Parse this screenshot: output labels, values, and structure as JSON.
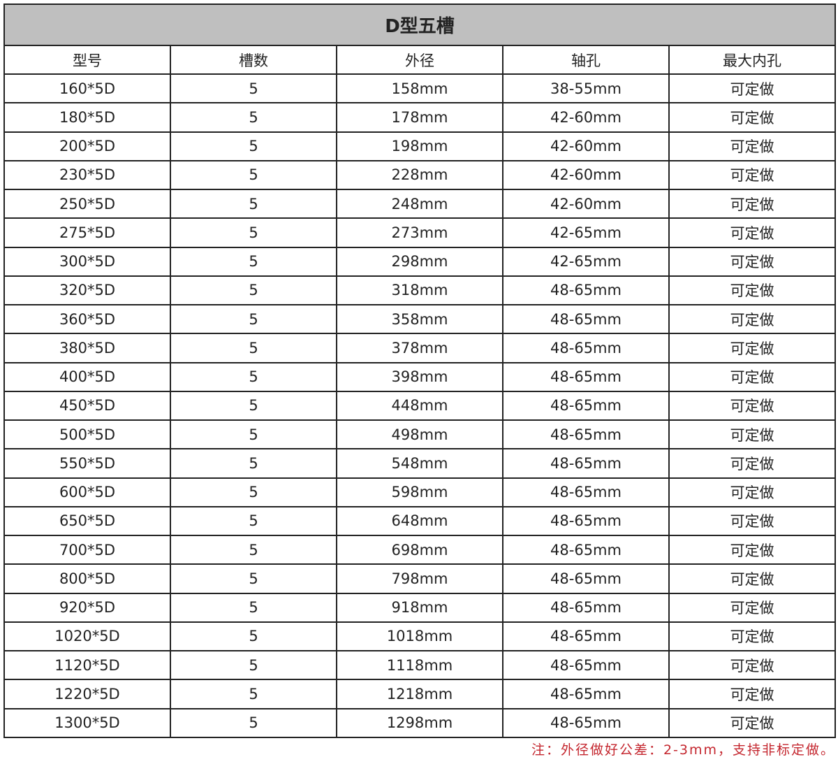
{
  "title": "D型五槽",
  "columns": [
    "型号",
    "槽数",
    "外径",
    "轴孔",
    "最大内孔"
  ],
  "rows": [
    [
      "160*5D",
      "5",
      "158mm",
      "38-55mm",
      "可定做"
    ],
    [
      "180*5D",
      "5",
      "178mm",
      "42-60mm",
      "可定做"
    ],
    [
      "200*5D",
      "5",
      "198mm",
      "42-60mm",
      "可定做"
    ],
    [
      "230*5D",
      "5",
      "228mm",
      "42-60mm",
      "可定做"
    ],
    [
      "250*5D",
      "5",
      "248mm",
      "42-60mm",
      "可定做"
    ],
    [
      "275*5D",
      "5",
      "273mm",
      "42-65mm",
      "可定做"
    ],
    [
      "300*5D",
      "5",
      "298mm",
      "42-65mm",
      "可定做"
    ],
    [
      "320*5D",
      "5",
      "318mm",
      "48-65mm",
      "可定做"
    ],
    [
      "360*5D",
      "5",
      "358mm",
      "48-65mm",
      "可定做"
    ],
    [
      "380*5D",
      "5",
      "378mm",
      "48-65mm",
      "可定做"
    ],
    [
      "400*5D",
      "5",
      "398mm",
      "48-65mm",
      "可定做"
    ],
    [
      "450*5D",
      "5",
      "448mm",
      "48-65mm",
      "可定做"
    ],
    [
      "500*5D",
      "5",
      "498mm",
      "48-65mm",
      "可定做"
    ],
    [
      "550*5D",
      "5",
      "548mm",
      "48-65mm",
      "可定做"
    ],
    [
      "600*5D",
      "5",
      "598mm",
      "48-65mm",
      "可定做"
    ],
    [
      "650*5D",
      "5",
      "648mm",
      "48-65mm",
      "可定做"
    ],
    [
      "700*5D",
      "5",
      "698mm",
      "48-65mm",
      "可定做"
    ],
    [
      "800*5D",
      "5",
      "798mm",
      "48-65mm",
      "可定做"
    ],
    [
      "920*5D",
      "5",
      "918mm",
      "48-65mm",
      "可定做"
    ],
    [
      "1020*5D",
      "5",
      "1018mm",
      "48-65mm",
      "可定做"
    ],
    [
      "1120*5D",
      "5",
      "1118mm",
      "48-65mm",
      "可定做"
    ],
    [
      "1220*5D",
      "5",
      "1218mm",
      "48-65mm",
      "可定做"
    ],
    [
      "1300*5D",
      "5",
      "1298mm",
      "48-65mm",
      "可定做"
    ]
  ],
  "note": "注：外径做好公差：2-3mm，支持非标定做。",
  "colors": {
    "title_bg": "#bfbfbf",
    "note": "#c4262e",
    "border": "#222222"
  }
}
